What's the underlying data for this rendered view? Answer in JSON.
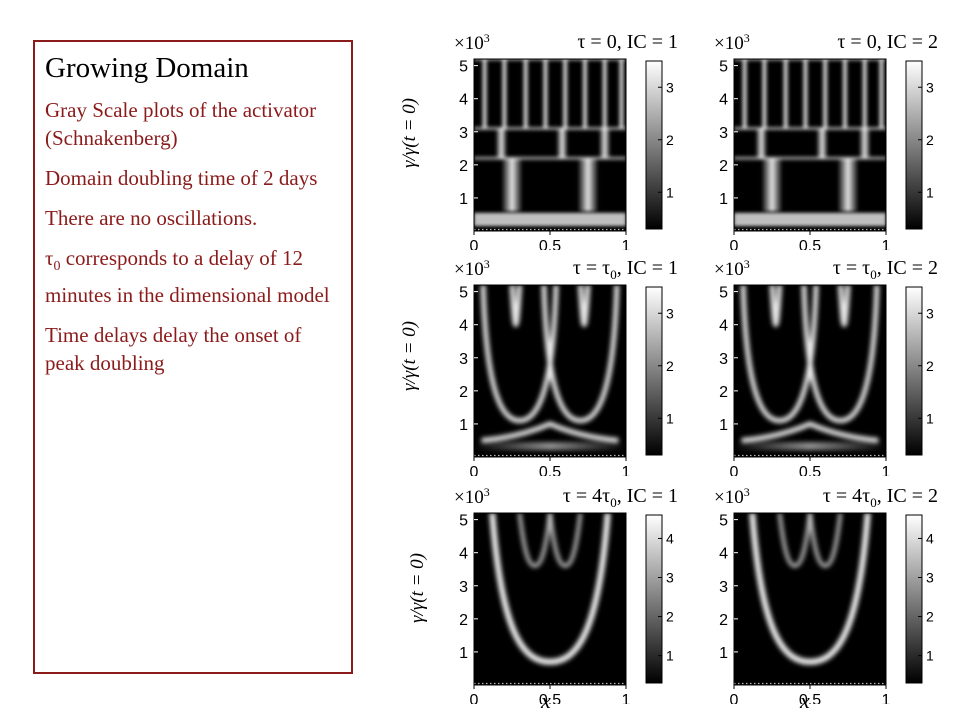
{
  "slide": {
    "heading": "Growing Domain",
    "bullets": [
      "Gray Scale plots of the activator (Schnakenberg)",
      "Domain doubling time of 2 days",
      "There are no oscillations.",
      "corresponds to a delay of 12 minutes in the dimensional model",
      "Time delays delay the onset of peak doubling"
    ],
    "tau0_symbol": "τ",
    "tau0_sub": "0"
  },
  "figure": {
    "ylabel": "γ/γ(t = 0)",
    "xlabel": "x",
    "scale_label": "×10",
    "scale_exp": "3",
    "x_ticks": [
      "0",
      "0.5",
      "1"
    ],
    "y_ticks": [
      "1",
      "2",
      "3",
      "4",
      "5"
    ],
    "panels": [
      {
        "title_pre": "τ = 0",
        "title_sub": "",
        "title_post": ", IC = 1",
        "colorbar_ticks": [
          "1",
          "2",
          "3"
        ],
        "colorbar_max": 3.5
      },
      {
        "title_pre": "τ = 0",
        "title_sub": "",
        "title_post": ", IC = 2",
        "colorbar_ticks": [
          "1",
          "2",
          "3"
        ],
        "colorbar_max": 3.5
      },
      {
        "title_pre": "τ = τ",
        "title_sub": "0",
        "title_post": ", IC = 1",
        "colorbar_ticks": [
          "1",
          "2",
          "3"
        ],
        "colorbar_max": 3.5
      },
      {
        "title_pre": "τ = τ",
        "title_sub": "0",
        "title_post": ", IC = 2",
        "colorbar_ticks": [
          "1",
          "2",
          "3"
        ],
        "colorbar_max": 3.5
      },
      {
        "title_pre": "τ = 4τ",
        "title_sub": "0",
        "title_post": ", IC = 1",
        "colorbar_ticks": [
          "1",
          "2",
          "3",
          "4"
        ],
        "colorbar_max": 4.6
      },
      {
        "title_pre": "τ = 4τ",
        "title_sub": "0",
        "title_post": ", IC = 2",
        "colorbar_ticks": [
          "1",
          "2",
          "3",
          "4"
        ],
        "colorbar_max": 4.6
      }
    ]
  }
}
